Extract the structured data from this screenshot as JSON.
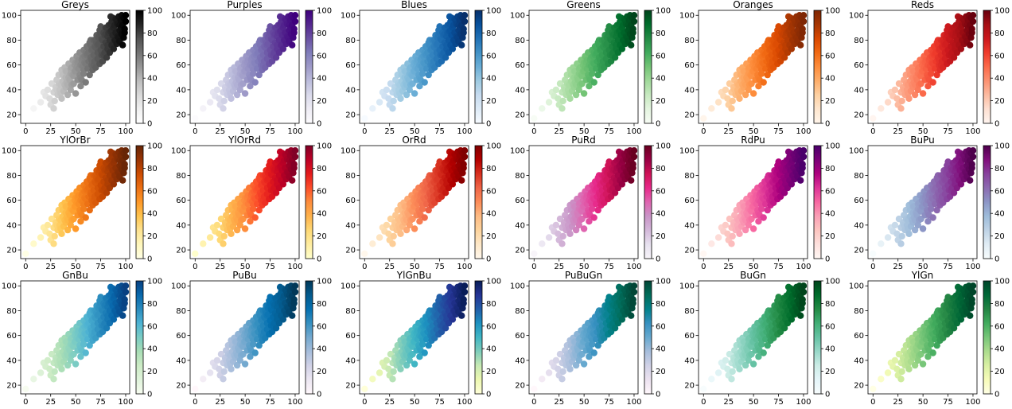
{
  "chart_data": {
    "type": "scatter",
    "description_series": "same data plotted 18 times, colored by x value with different sequential colormaps",
    "x_ticks": [
      0,
      25,
      50,
      75,
      100
    ],
    "y_ticks": [
      20,
      40,
      60,
      80,
      100
    ],
    "xlim": [
      -5,
      104
    ],
    "ylim": [
      13,
      104
    ],
    "colorbar_ticks": [
      0,
      20,
      40,
      60,
      80,
      100
    ],
    "colorbar_range": [
      0,
      100
    ],
    "points": [
      [
        0,
        17
      ],
      [
        8,
        25
      ],
      [
        15,
        30
      ],
      [
        18,
        38
      ],
      [
        20,
        35
      ],
      [
        22,
        40
      ],
      [
        24,
        33
      ],
      [
        25,
        28
      ],
      [
        26,
        45
      ],
      [
        28,
        38
      ],
      [
        28,
        25
      ],
      [
        29,
        31
      ],
      [
        30,
        42
      ],
      [
        31,
        48
      ],
      [
        32,
        36
      ],
      [
        33,
        52
      ],
      [
        34,
        40
      ],
      [
        35,
        44
      ],
      [
        36,
        56
      ],
      [
        36,
        33
      ],
      [
        37,
        47
      ],
      [
        38,
        39
      ],
      [
        39,
        58
      ],
      [
        40,
        50
      ],
      [
        40,
        42
      ],
      [
        41,
        55
      ],
      [
        42,
        36
      ],
      [
        43,
        61
      ],
      [
        44,
        48
      ],
      [
        45,
        53
      ],
      [
        45,
        40
      ],
      [
        46,
        58
      ],
      [
        47,
        64
      ],
      [
        48,
        45
      ],
      [
        48,
        51
      ],
      [
        49,
        60
      ],
      [
        50,
        55
      ],
      [
        50,
        37
      ],
      [
        51,
        67
      ],
      [
        52,
        48
      ],
      [
        52,
        62
      ],
      [
        53,
        57
      ],
      [
        54,
        70
      ],
      [
        55,
        50
      ],
      [
        55,
        43
      ],
      [
        56,
        64
      ],
      [
        57,
        59
      ],
      [
        58,
        72
      ],
      [
        58,
        53
      ],
      [
        59,
        67
      ],
      [
        60,
        61
      ],
      [
        60,
        46
      ],
      [
        61,
        75
      ],
      [
        62,
        57
      ],
      [
        62,
        69
      ],
      [
        63,
        63
      ],
      [
        64,
        78
      ],
      [
        64,
        52
      ],
      [
        65,
        66
      ],
      [
        66,
        60
      ],
      [
        66,
        72
      ],
      [
        67,
        56
      ],
      [
        68,
        80
      ],
      [
        68,
        68
      ],
      [
        69,
        63
      ],
      [
        70,
        74
      ],
      [
        70,
        58
      ],
      [
        71,
        84
      ],
      [
        72,
        70
      ],
      [
        72,
        65
      ],
      [
        73,
        77
      ],
      [
        74,
        61
      ],
      [
        74,
        88
      ],
      [
        75,
        72
      ],
      [
        76,
        68
      ],
      [
        76,
        81
      ],
      [
        77,
        63
      ],
      [
        78,
        86
      ],
      [
        78,
        75
      ],
      [
        79,
        70
      ],
      [
        80,
        90
      ],
      [
        80,
        78
      ],
      [
        81,
        66
      ],
      [
        82,
        83
      ],
      [
        82,
        73
      ],
      [
        83,
        92
      ],
      [
        84,
        80
      ],
      [
        84,
        70
      ],
      [
        85,
        87
      ],
      [
        86,
        76
      ],
      [
        86,
        95
      ],
      [
        87,
        84
      ],
      [
        88,
        73
      ],
      [
        88,
        90
      ],
      [
        89,
        80
      ],
      [
        90,
        97
      ],
      [
        90,
        86
      ],
      [
        91,
        77
      ],
      [
        92,
        93
      ],
      [
        92,
        83
      ],
      [
        93,
        99
      ],
      [
        94,
        88
      ],
      [
        94,
        79
      ],
      [
        95,
        96
      ],
      [
        96,
        85
      ],
      [
        96,
        100
      ],
      [
        97,
        92
      ],
      [
        98,
        82
      ],
      [
        98,
        98
      ],
      [
        99,
        89
      ],
      [
        100,
        95
      ],
      [
        100,
        100
      ],
      [
        99,
        86
      ],
      [
        97,
        76
      ],
      [
        95,
        90
      ],
      [
        93,
        82
      ],
      [
        91,
        96
      ],
      [
        89,
        92
      ],
      [
        87,
        98
      ],
      [
        85,
        93
      ],
      [
        83,
        86
      ],
      [
        81,
        90
      ],
      [
        79,
        84
      ],
      [
        77,
        80
      ],
      [
        75,
        86
      ],
      [
        73,
        82
      ],
      [
        71,
        78
      ],
      [
        69,
        75
      ],
      [
        67,
        73
      ],
      [
        65,
        76
      ],
      [
        63,
        70
      ],
      [
        61,
        68
      ],
      [
        59,
        62
      ],
      [
        57,
        66
      ],
      [
        55,
        60
      ],
      [
        53,
        64
      ],
      [
        51,
        58
      ],
      [
        49,
        55
      ],
      [
        47,
        52
      ],
      [
        45,
        57
      ],
      [
        43,
        50
      ],
      [
        41,
        46
      ],
      [
        39,
        44
      ],
      [
        37,
        52
      ],
      [
        35,
        37
      ],
      [
        33,
        45
      ],
      [
        31,
        40
      ],
      [
        42,
        44
      ],
      [
        54,
        52
      ],
      [
        66,
        64
      ],
      [
        78,
        68
      ],
      [
        90,
        80
      ],
      [
        60,
        70
      ],
      [
        70,
        80
      ],
      [
        80,
        85
      ],
      [
        50,
        62
      ],
      [
        40,
        55
      ],
      [
        65,
        80
      ],
      [
        75,
        91
      ],
      [
        85,
        99
      ],
      [
        56,
        48
      ],
      [
        68,
        60
      ],
      [
        82,
        76
      ],
      [
        94,
        92
      ],
      [
        46,
        44
      ],
      [
        58,
        56
      ],
      [
        72,
        76
      ],
      [
        86,
        88
      ],
      [
        62,
        74
      ],
      [
        74,
        84
      ]
    ],
    "panels": [
      {
        "title": "Greys",
        "stops": [
          "#ffffff",
          "#f0f0f0",
          "#d9d9d9",
          "#bdbdbd",
          "#969696",
          "#737373",
          "#525252",
          "#252525",
          "#000000"
        ]
      },
      {
        "title": "Purples",
        "stops": [
          "#fcfbfd",
          "#efedf5",
          "#dadaeb",
          "#bcbddc",
          "#9e9ac8",
          "#807dba",
          "#6a51a3",
          "#54278f",
          "#3f007d"
        ]
      },
      {
        "title": "Blues",
        "stops": [
          "#f7fbff",
          "#deebf7",
          "#c6dbef",
          "#9ecae1",
          "#6baed6",
          "#4292c6",
          "#2171b5",
          "#08519c",
          "#08306b"
        ]
      },
      {
        "title": "Greens",
        "stops": [
          "#f7fcf5",
          "#e5f5e0",
          "#c7e9c0",
          "#a1d99b",
          "#74c476",
          "#41ab5d",
          "#238b45",
          "#006d2c",
          "#00441b"
        ]
      },
      {
        "title": "Oranges",
        "stops": [
          "#fff5eb",
          "#fee6ce",
          "#fdd0a2",
          "#fdae6b",
          "#fd8d3c",
          "#f16913",
          "#d94801",
          "#a63603",
          "#7f2704"
        ]
      },
      {
        "title": "Reds",
        "stops": [
          "#fff5f0",
          "#fee0d2",
          "#fcbba1",
          "#fc9272",
          "#fb6a4a",
          "#ef3b2c",
          "#cb181d",
          "#a50f15",
          "#67000d"
        ]
      },
      {
        "title": "YlOrBr",
        "stops": [
          "#ffffe5",
          "#fff7bc",
          "#fee391",
          "#fec44f",
          "#fe9929",
          "#ec7014",
          "#cc4c02",
          "#993404",
          "#662506"
        ]
      },
      {
        "title": "YlOrRd",
        "stops": [
          "#ffffcc",
          "#ffeda0",
          "#fed976",
          "#feb24c",
          "#fd8d3c",
          "#fc4e2a",
          "#e31a1c",
          "#bd0026",
          "#800026"
        ]
      },
      {
        "title": "OrRd",
        "stops": [
          "#fff7ec",
          "#fee8c8",
          "#fdd49e",
          "#fdbb84",
          "#fc8d59",
          "#ef6548",
          "#d7301f",
          "#b30000",
          "#7f0000"
        ]
      },
      {
        "title": "PuRd",
        "stops": [
          "#f7f4f9",
          "#e7e1ef",
          "#d4b9da",
          "#c994c7",
          "#df65b0",
          "#e7298a",
          "#ce1256",
          "#980043",
          "#67001f"
        ]
      },
      {
        "title": "RdPu",
        "stops": [
          "#fff7f3",
          "#fde0dd",
          "#fcc5c0",
          "#fa9fb5",
          "#f768a1",
          "#dd3497",
          "#ae017e",
          "#7a0177",
          "#49006a"
        ]
      },
      {
        "title": "BuPu",
        "stops": [
          "#f7fcfd",
          "#e0ecf4",
          "#bfd3e6",
          "#9ebcda",
          "#8c96c6",
          "#8c6bb1",
          "#88419d",
          "#810f7c",
          "#4d004b"
        ]
      },
      {
        "title": "GnBu",
        "stops": [
          "#f7fcf0",
          "#e0f3db",
          "#ccebc5",
          "#a8ddb5",
          "#7bccc4",
          "#4eb3d3",
          "#2b8cbe",
          "#0868ac",
          "#084081"
        ]
      },
      {
        "title": "PuBu",
        "stops": [
          "#fff7fb",
          "#ece7f2",
          "#d0d1e6",
          "#a6bddb",
          "#74a9cf",
          "#3690c0",
          "#0570b0",
          "#045a8d",
          "#023858"
        ]
      },
      {
        "title": "YlGnBu",
        "stops": [
          "#ffffd9",
          "#edf8b1",
          "#c7e9b4",
          "#7fcdbb",
          "#41b6c4",
          "#1d91c0",
          "#225ea8",
          "#253494",
          "#081d58"
        ]
      },
      {
        "title": "PuBuGn",
        "stops": [
          "#fff7fb",
          "#ece2f0",
          "#d0d1e6",
          "#a6bddb",
          "#67a9cf",
          "#3690c0",
          "#02818a",
          "#016c59",
          "#014636"
        ]
      },
      {
        "title": "BuGn",
        "stops": [
          "#f7fcfd",
          "#e5f5f9",
          "#ccece6",
          "#99d8c9",
          "#66c2a4",
          "#41ae76",
          "#238b45",
          "#006d2c",
          "#00441b"
        ]
      },
      {
        "title": "YlGn",
        "stops": [
          "#ffffe5",
          "#f7fcb9",
          "#d9f0a3",
          "#addd8e",
          "#78c679",
          "#41ab5d",
          "#238443",
          "#006837",
          "#004529"
        ]
      }
    ]
  }
}
